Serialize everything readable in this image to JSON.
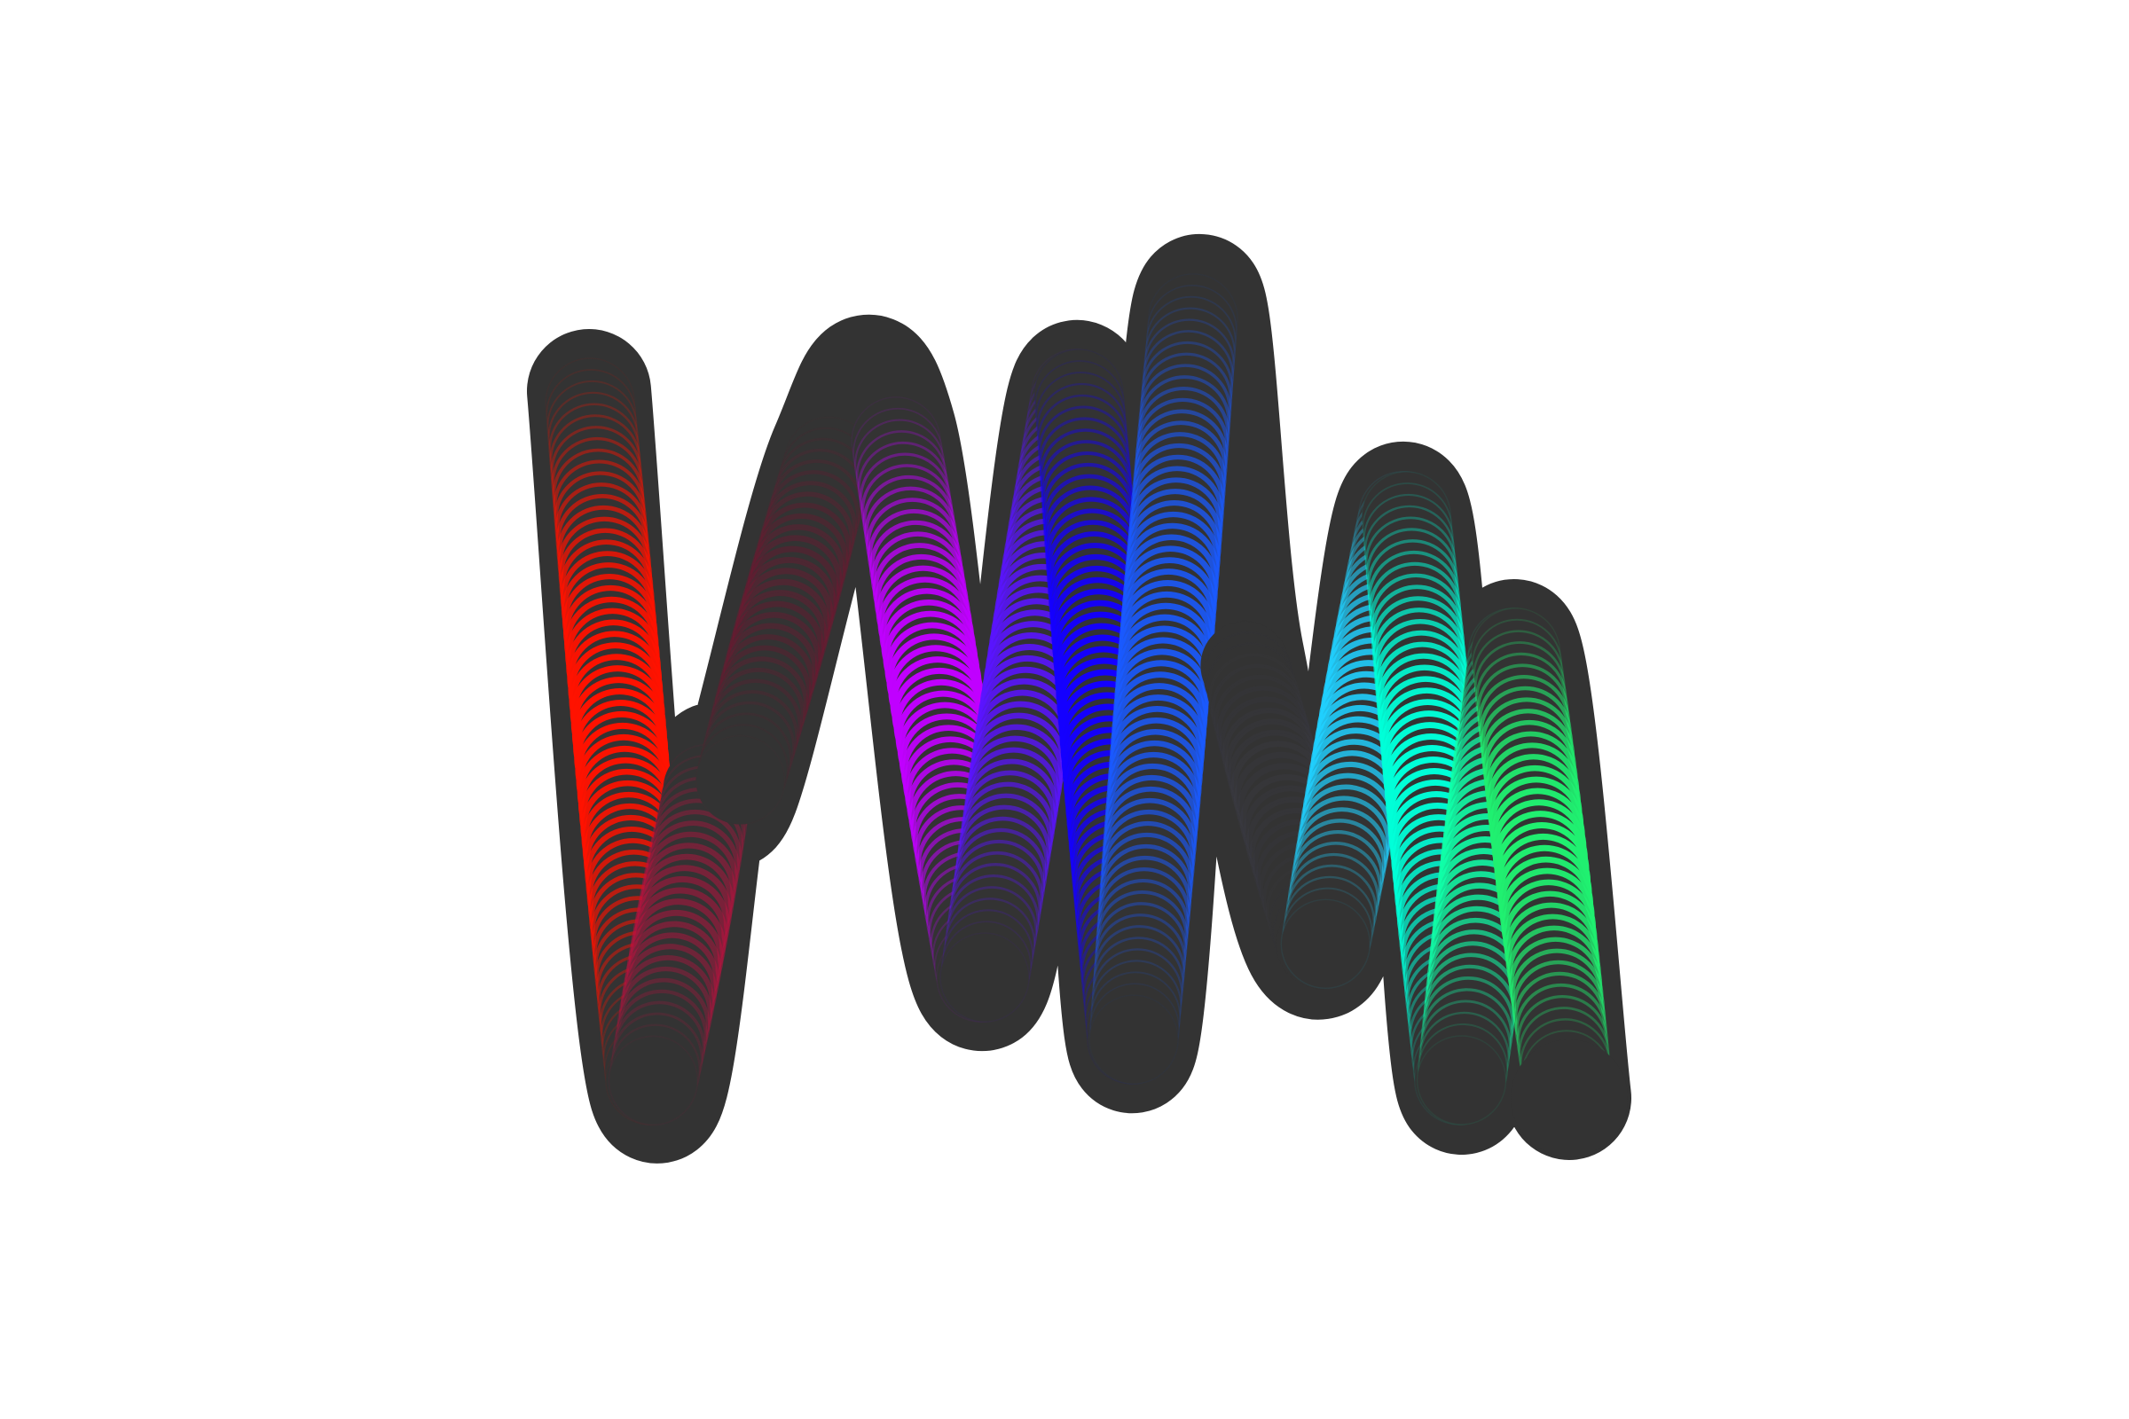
{
  "artwork": {
    "background": "#ffffff",
    "stroke_color": "#333333",
    "segment_colors": [
      "#ff1200",
      "#c01040",
      "#801030",
      "#c000ff",
      "#5a14ff",
      "#1400ff",
      "#1a5aff",
      "#404050",
      "#20d0ff",
      "#00ffd8",
      "#10ffa8",
      "#20f070"
    ],
    "segment_intensity": [
      1,
      0.5,
      0.35,
      1,
      0.9,
      1,
      0.9,
      0.2,
      0.9,
      1,
      0.9,
      1
    ]
  }
}
